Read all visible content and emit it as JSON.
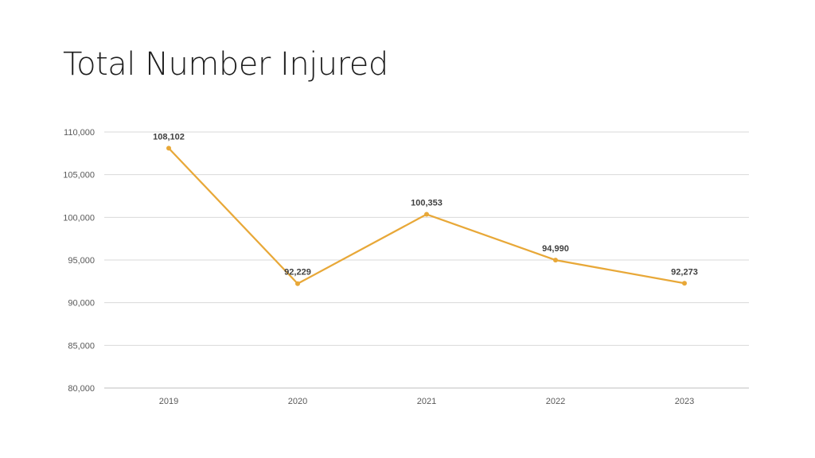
{
  "page": {
    "title": "Total Number Injured"
  },
  "chart_data": {
    "type": "line",
    "title": "Total Number Injured",
    "xlabel": "",
    "ylabel": "",
    "categories": [
      "2019",
      "2020",
      "2021",
      "2022",
      "2023"
    ],
    "series": [
      {
        "values": [
          108102,
          92229,
          100353,
          94990,
          92273
        ],
        "data_labels": [
          "108,102",
          "92,229",
          "100,353",
          "94,990",
          "92,273"
        ],
        "color": "#E8A838"
      }
    ],
    "ylim": [
      80000,
      110000
    ],
    "yticks": [
      80000,
      85000,
      90000,
      95000,
      100000,
      105000,
      110000
    ],
    "ytick_labels": [
      "80,000",
      "85,000",
      "90,000",
      "95,000",
      "100,000",
      "105,000",
      "110,000"
    ],
    "grid": true,
    "legend": "none",
    "colors": {
      "line": "#E8A838",
      "grid": "#D9D9D9",
      "axis": "#BFBFBF"
    }
  }
}
